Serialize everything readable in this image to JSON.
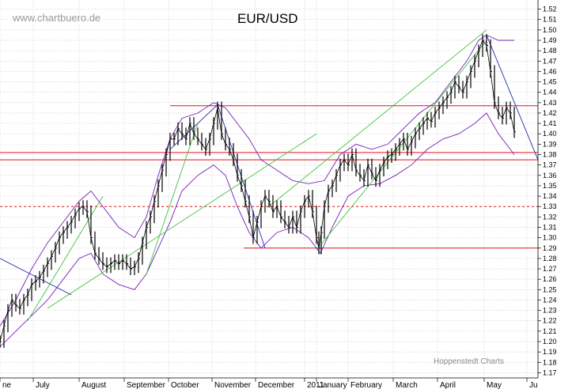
{
  "chart_data": {
    "type": "line",
    "title": "EUR/USD",
    "watermark": "www.chartbuero.de",
    "credit": "Hoppenstedt Charts",
    "ylim": [
      1.165,
      1.525
    ],
    "y_tick_labels": [
      "1.52",
      "1.51",
      "1.50",
      "1.49",
      "1.48",
      "1.47",
      "1.46",
      "1.45",
      "1.44",
      "1.43",
      "1.42",
      "1.41",
      "1.40",
      "1.39",
      "1.38",
      "1.37",
      "1.36",
      "1.35",
      "1.34",
      "1.33",
      "1.32",
      "1.31",
      "1.30",
      "1.29",
      "1.28",
      "1.27",
      "1.26",
      "1.25",
      "1.24",
      "1.23",
      "1.22",
      "1.21",
      "1.20",
      "1.19",
      "1.18",
      "1.17"
    ],
    "x_labels": [
      "ne",
      "July",
      "August",
      "September",
      "October",
      "November",
      "December",
      "2011",
      "January",
      "February",
      "March",
      "April",
      "May",
      "Ju"
    ],
    "grid": true,
    "series": [
      {
        "values": [
          [
            0,
            1.2
          ],
          [
            5,
            1.215
          ],
          [
            10,
            1.23
          ],
          [
            15,
            1.24
          ],
          [
            20,
            1.235
          ],
          [
            25,
            1.232
          ],
          [
            30,
            1.24
          ],
          [
            35,
            1.245
          ],
          [
            40,
            1.255
          ],
          [
            45,
            1.258
          ],
          [
            50,
            1.262
          ],
          [
            55,
            1.268
          ],
          [
            60,
            1.275
          ],
          [
            65,
            1.282
          ],
          [
            70,
            1.29
          ],
          [
            75,
            1.3
          ],
          [
            80,
            1.305
          ],
          [
            85,
            1.31
          ],
          [
            90,
            1.315
          ],
          [
            95,
            1.322
          ],
          [
            100,
            1.328
          ],
          [
            105,
            1.33
          ],
          [
            110,
            1.325
          ],
          [
            115,
            1.3
          ],
          [
            120,
            1.285
          ],
          [
            125,
            1.28
          ],
          [
            130,
            1.275
          ],
          [
            135,
            1.272
          ],
          [
            140,
            1.275
          ],
          [
            145,
            1.278
          ],
          [
            150,
            1.275
          ],
          [
            155,
            1.278
          ],
          [
            160,
            1.275
          ],
          [
            165,
            1.27
          ],
          [
            170,
            1.272
          ],
          [
            175,
            1.28
          ],
          [
            180,
            1.295
          ],
          [
            185,
            1.31
          ],
          [
            190,
            1.32
          ],
          [
            195,
            1.335
          ],
          [
            200,
            1.35
          ],
          [
            205,
            1.365
          ],
          [
            210,
            1.38
          ],
          [
            215,
            1.395
          ],
          [
            220,
            1.395
          ],
          [
            225,
            1.405
          ],
          [
            230,
            1.4
          ],
          [
            235,
            1.395
          ],
          [
            240,
            1.41
          ],
          [
            245,
            1.4
          ],
          [
            250,
            1.395
          ],
          [
            255,
            1.39
          ],
          [
            260,
            1.385
          ],
          [
            265,
            1.395
          ],
          [
            270,
            1.41
          ],
          [
            275,
            1.425
          ],
          [
            280,
            1.4
          ],
          [
            285,
            1.39
          ],
          [
            290,
            1.385
          ],
          [
            295,
            1.375
          ],
          [
            300,
            1.36
          ],
          [
            305,
            1.35
          ],
          [
            310,
            1.335
          ],
          [
            315,
            1.32
          ],
          [
            320,
            1.3
          ],
          [
            325,
            1.315
          ],
          [
            330,
            1.33
          ],
          [
            335,
            1.34
          ],
          [
            340,
            1.335
          ],
          [
            345,
            1.325
          ],
          [
            350,
            1.33
          ],
          [
            355,
            1.32
          ],
          [
            360,
            1.315
          ],
          [
            365,
            1.31
          ],
          [
            370,
            1.32
          ],
          [
            375,
            1.31
          ],
          [
            380,
            1.325
          ],
          [
            385,
            1.335
          ],
          [
            390,
            1.34
          ],
          [
            395,
            1.325
          ],
          [
            400,
            1.3
          ],
          [
            403,
            1.29
          ],
          [
            406,
            1.305
          ],
          [
            410,
            1.33
          ],
          [
            415,
            1.345
          ],
          [
            420,
            1.35
          ],
          [
            425,
            1.36
          ],
          [
            430,
            1.37
          ],
          [
            435,
            1.375
          ],
          [
            440,
            1.37
          ],
          [
            445,
            1.38
          ],
          [
            450,
            1.365
          ],
          [
            455,
            1.36
          ],
          [
            460,
            1.355
          ],
          [
            465,
            1.37
          ],
          [
            470,
            1.362
          ],
          [
            475,
            1.355
          ],
          [
            480,
            1.365
          ],
          [
            485,
            1.372
          ],
          [
            490,
            1.378
          ],
          [
            495,
            1.38
          ],
          [
            500,
            1.385
          ],
          [
            505,
            1.39
          ],
          [
            510,
            1.395
          ],
          [
            515,
            1.385
          ],
          [
            520,
            1.392
          ],
          [
            525,
            1.4
          ],
          [
            530,
            1.405
          ],
          [
            535,
            1.41
          ],
          [
            540,
            1.415
          ],
          [
            545,
            1.412
          ],
          [
            550,
            1.42
          ],
          [
            555,
            1.425
          ],
          [
            560,
            1.43
          ],
          [
            565,
            1.435
          ],
          [
            570,
            1.44
          ],
          [
            575,
            1.45
          ],
          [
            580,
            1.445
          ],
          [
            585,
            1.44
          ],
          [
            590,
            1.45
          ],
          [
            595,
            1.46
          ],
          [
            600,
            1.47
          ],
          [
            605,
            1.48
          ],
          [
            610,
            1.49
          ],
          [
            615,
            1.485
          ],
          [
            620,
            1.46
          ],
          [
            625,
            1.43
          ],
          [
            630,
            1.42
          ],
          [
            635,
            1.415
          ],
          [
            640,
            1.425
          ],
          [
            645,
            1.42
          ],
          [
            650,
            1.402
          ]
        ]
      }
    ],
    "upper_band": [
      [
        0,
        1.215
      ],
      [
        20,
        1.24
      ],
      [
        40,
        1.27
      ],
      [
        60,
        1.295
      ],
      [
        80,
        1.315
      ],
      [
        100,
        1.335
      ],
      [
        115,
        1.345
      ],
      [
        130,
        1.33
      ],
      [
        150,
        1.31
      ],
      [
        170,
        1.3
      ],
      [
        185,
        1.32
      ],
      [
        200,
        1.36
      ],
      [
        215,
        1.395
      ],
      [
        230,
        1.415
      ],
      [
        250,
        1.42
      ],
      [
        270,
        1.43
      ],
      [
        285,
        1.425
      ],
      [
        300,
        1.41
      ],
      [
        315,
        1.395
      ],
      [
        330,
        1.375
      ],
      [
        350,
        1.365
      ],
      [
        370,
        1.355
      ],
      [
        390,
        1.352
      ],
      [
        410,
        1.355
      ],
      [
        430,
        1.38
      ],
      [
        450,
        1.39
      ],
      [
        470,
        1.385
      ],
      [
        490,
        1.39
      ],
      [
        510,
        1.405
      ],
      [
        530,
        1.42
      ],
      [
        550,
        1.43
      ],
      [
        570,
        1.45
      ],
      [
        590,
        1.47
      ],
      [
        605,
        1.49
      ],
      [
        615,
        1.495
      ],
      [
        630,
        1.49
      ],
      [
        650,
        1.49
      ]
    ],
    "lower_band": [
      [
        0,
        1.195
      ],
      [
        20,
        1.21
      ],
      [
        40,
        1.225
      ],
      [
        60,
        1.24
      ],
      [
        80,
        1.26
      ],
      [
        100,
        1.28
      ],
      [
        115,
        1.285
      ],
      [
        130,
        1.265
      ],
      [
        150,
        1.255
      ],
      [
        170,
        1.25
      ],
      [
        185,
        1.265
      ],
      [
        200,
        1.29
      ],
      [
        215,
        1.315
      ],
      [
        230,
        1.345
      ],
      [
        250,
        1.36
      ],
      [
        270,
        1.37
      ],
      [
        285,
        1.36
      ],
      [
        300,
        1.33
      ],
      [
        315,
        1.305
      ],
      [
        330,
        1.29
      ],
      [
        350,
        1.305
      ],
      [
        370,
        1.31
      ],
      [
        390,
        1.3
      ],
      [
        405,
        1.285
      ],
      [
        420,
        1.31
      ],
      [
        440,
        1.34
      ],
      [
        460,
        1.35
      ],
      [
        480,
        1.352
      ],
      [
        500,
        1.36
      ],
      [
        520,
        1.37
      ],
      [
        540,
        1.385
      ],
      [
        560,
        1.395
      ],
      [
        580,
        1.4
      ],
      [
        600,
        1.41
      ],
      [
        615,
        1.42
      ],
      [
        630,
        1.4
      ],
      [
        650,
        1.38
      ]
    ],
    "horizontal_lines": [
      {
        "y": 1.427,
        "x0": 215,
        "x1": 680,
        "style": "solid",
        "color": "#e0151b"
      },
      {
        "y": 1.382,
        "x0": 0,
        "x1": 680,
        "style": "solid",
        "color": "#e0151b"
      },
      {
        "y": 1.375,
        "x0": 0,
        "x1": 680,
        "style": "solid",
        "color": "#e0151b"
      },
      {
        "y": 1.33,
        "x0": 0,
        "x1": 680,
        "style": "dashed",
        "color": "#e0151b"
      },
      {
        "y": 1.29,
        "x0": 308,
        "x1": 680,
        "style": "solid",
        "color": "#e0151b"
      }
    ],
    "trend_lines": [
      {
        "color": "#3cc43c",
        "points": [
          [
            35,
            1.22
          ],
          [
            130,
            1.34
          ]
        ]
      },
      {
        "color": "#3cc43c",
        "points": [
          [
            60,
            1.232
          ],
          [
            400,
            1.4
          ]
        ]
      },
      {
        "color": "#3cc43c",
        "points": [
          [
            185,
            1.265
          ],
          [
            250,
            1.41
          ]
        ]
      },
      {
        "color": "#3cc43c",
        "points": [
          [
            400,
            1.288
          ],
          [
            615,
            1.49
          ]
        ]
      },
      {
        "color": "#3cc43c",
        "points": [
          [
            340,
            1.33
          ],
          [
            615,
            1.5
          ]
        ]
      },
      {
        "color": "#1f2fa8",
        "points": [
          [
            0,
            1.28
          ],
          [
            90,
            1.245
          ]
        ]
      },
      {
        "color": "#1f2fa8",
        "points": [
          [
            275,
            1.428
          ],
          [
            335,
            1.29
          ]
        ]
      },
      {
        "color": "#1f2fa8",
        "points": [
          [
            215,
            1.385
          ],
          [
            275,
            1.428
          ]
        ]
      },
      {
        "color": "#1f2fa8",
        "points": [
          [
            615,
            1.495
          ],
          [
            680,
            1.375
          ]
        ]
      }
    ],
    "colors": {
      "price": "#000000",
      "bands": "#7a1fb8",
      "grid": "#bcbcbc",
      "resistance": "#e0151b",
      "trend_up": "#3cc43c",
      "trend_down": "#1f2fa8"
    }
  }
}
